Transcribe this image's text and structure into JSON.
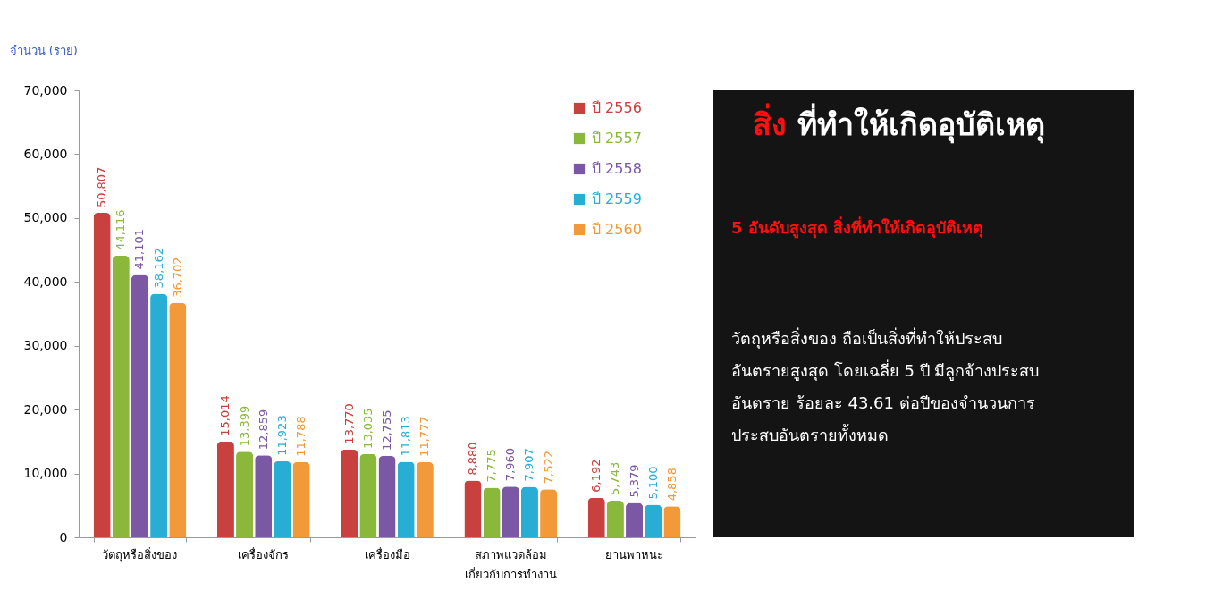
{
  "chart_data": {
    "type": "bar",
    "title": "สิ่ง ที่ทำให้เกิดอุบัติเหตุ",
    "subtitle": "5 อันดับสูงสุด สิ่งที่ทำให้เกิดอุบัติเหตุ",
    "ylabel": "จำนวน (ราย)",
    "annotations": [
      "วัตถุหรือสิ่งของ ถือเป็นสิ่งที่ทำให้ประสบ\nอันตรายสูงสุด โดยเฉลี่ย 5 ปี มีลูกจ้างประสบ\nอันตราย ร้อยละ 43.61 ต่อปีของจำนวนการ\nประสบอันตรายทั้งหมด"
    ],
    "categories": [
      "วัตถุหรือสิ่งของ",
      "เครื่องจักร",
      "เครื่องมือ",
      "สภาพแวดล้อม\nเกี่ยวกับการทำงาน",
      "ยานพาหนะ"
    ],
    "series": [
      {
        "name": "ปี 2556",
        "color": "#c8413e",
        "values": [
          50807,
          15014,
          13770,
          8880,
          6192
        ],
        "value_labels": [
          "50,807",
          "15,014",
          "13,770",
          "8,880",
          "6,192"
        ]
      },
      {
        "name": "ปี 2557",
        "color": "#8ab83a",
        "values": [
          44116,
          13399,
          13035,
          7775,
          5743
        ],
        "value_labels": [
          "44,116",
          "13,399",
          "13,035",
          "7,775",
          "5,743"
        ]
      },
      {
        "name": "ปี 2558",
        "color": "#7b58a4",
        "values": [
          41101,
          12859,
          12755,
          7960,
          5379
        ],
        "value_labels": [
          "41,101",
          "12,859",
          "12,755",
          "7,960",
          "5,379"
        ]
      },
      {
        "name": "ปี 2559",
        "color": "#28aed4",
        "values": [
          38162,
          11923,
          11813,
          7907,
          5100
        ],
        "value_labels": [
          "38,162",
          "11,923",
          "11,813",
          "7,907",
          "5,100"
        ]
      },
      {
        "name": "ปี 2560",
        "color": "#f2993a",
        "values": [
          36702,
          11788,
          11777,
          7522,
          4858
        ],
        "value_labels": [
          "36,702",
          "11,788",
          "11,777",
          "7,522",
          "4,858"
        ]
      }
    ],
    "ylim": [
      0,
      70000
    ],
    "yticks": [
      {
        "value": 0,
        "label": "0"
      },
      {
        "value": 10000,
        "label": "10,000"
      },
      {
        "value": 20000,
        "label": "20,000"
      },
      {
        "value": 30000,
        "label": "30,000"
      },
      {
        "value": 40000,
        "label": "40,000"
      },
      {
        "value": 50000,
        "label": "50,000"
      },
      {
        "value": 60000,
        "label": "60,000"
      },
      {
        "value": 70000,
        "label": "70,000"
      }
    ],
    "grid": false,
    "legend": "top right"
  }
}
